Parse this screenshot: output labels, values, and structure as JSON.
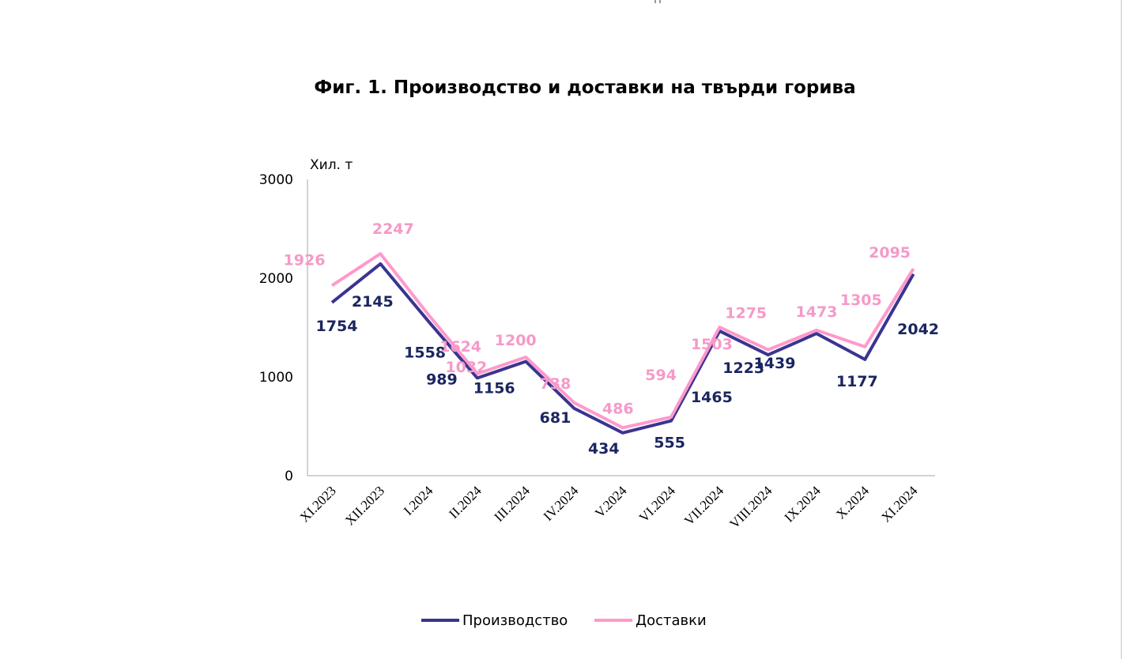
{
  "chart_data": {
    "type": "line",
    "title": "Фиг. 1. Производство и доставки на твърди горива",
    "ylabel": "Хил. т",
    "ylim": [
      0,
      3000
    ],
    "yticks": [
      "0",
      "1000",
      "2000",
      "3000"
    ],
    "categories": [
      "XI.2023",
      "XII.2023",
      "I.2024",
      "II.2024",
      "III.2024",
      "IV.2024",
      "V.2024",
      "VI.2024",
      "VII.2024",
      "VIII.2024",
      "IX.2024",
      "X.2024",
      "XI.2024"
    ],
    "series": [
      {
        "name": "Производство",
        "color": "#3a3590",
        "label_color": "#1b2560",
        "values": [
          1754,
          2145,
          1558,
          989,
          1156,
          681,
          434,
          555,
          1465,
          1223,
          1439,
          1177,
          2042
        ]
      },
      {
        "name": "Доставки",
        "color": "#ff99cc",
        "label_color": "#f59ac8",
        "values": [
          1926,
          2247,
          1624,
          1032,
          1200,
          738,
          486,
          594,
          1503,
          1275,
          1473,
          1305,
          2095
        ]
      }
    ],
    "grid": false,
    "legend": "bottom"
  }
}
